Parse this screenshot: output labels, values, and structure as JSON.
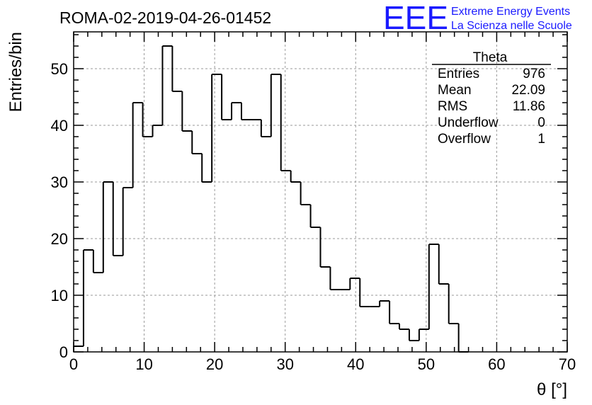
{
  "run_title": "ROMA-02-2019-04-26-01452",
  "logo": {
    "mark": "EEE",
    "line1": "Extreme Energy Events",
    "line2": "La Scienza nelle Scuole",
    "color": "#1a1aff"
  },
  "stats_box": {
    "title": "Theta",
    "rows": [
      {
        "label": "Entries",
        "value": "976"
      },
      {
        "label": "Mean",
        "value": "22.09"
      },
      {
        "label": "RMS",
        "value": "11.86"
      },
      {
        "label": "Underflow",
        "value": "0"
      },
      {
        "label": "Overflow",
        "value": "1"
      }
    ]
  },
  "chart_data": {
    "type": "histogram",
    "xlabel": "θ [°]",
    "ylabel": "Entries/bin",
    "xlim": [
      0,
      70
    ],
    "ylim": [
      0,
      56.5
    ],
    "grid": true,
    "bin_width": 1.4,
    "bin_start": 0,
    "values": [
      1,
      18,
      14,
      30,
      17,
      29,
      44,
      38,
      40,
      54,
      46,
      39,
      35,
      30,
      49,
      41,
      44,
      41,
      41,
      38,
      49,
      32,
      30,
      26,
      22,
      15,
      11,
      11,
      13,
      8,
      8,
      9,
      5,
      4,
      2,
      4,
      19,
      12,
      5,
      0
    ],
    "x_ticks": [
      0,
      10,
      20,
      30,
      40,
      50,
      60,
      70
    ],
    "y_ticks": [
      0,
      10,
      20,
      30,
      40,
      50
    ],
    "line_color": "#000000"
  }
}
